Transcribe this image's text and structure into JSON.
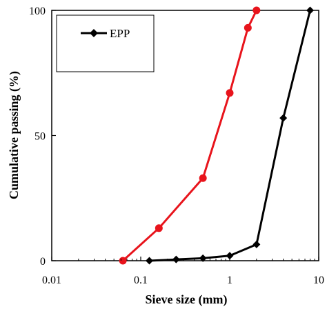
{
  "chart_data": {
    "type": "line",
    "xlabel": "Sieve size (mm)",
    "ylabel": "Cumulative passing (%)",
    "xscale": "log",
    "xlim": [
      0.01,
      10
    ],
    "ylim": [
      0,
      100
    ],
    "xticks": [
      0.01,
      0.1,
      1,
      10
    ],
    "xtick_labels": [
      "0.01",
      "0.1",
      "1",
      "10"
    ],
    "yticks": [
      0,
      50,
      100
    ],
    "ytick_labels": [
      "0",
      "50",
      "100"
    ],
    "grid": false,
    "legend": {
      "position": "top-left",
      "entries": [
        "EPP"
      ]
    },
    "series": [
      {
        "name": "EPP",
        "color": "#000000",
        "marker": "diamond",
        "x": [
          0.125,
          0.25,
          0.5,
          1,
          2,
          4,
          8
        ],
        "y": [
          0,
          0.5,
          1,
          2,
          6.5,
          57,
          100
        ]
      },
      {
        "color": "#e8141c",
        "marker": "circle",
        "x": [
          0.063,
          0.16,
          0.5,
          1,
          1.6,
          2
        ],
        "y": [
          0,
          13,
          33,
          67,
          93,
          100
        ]
      }
    ]
  }
}
